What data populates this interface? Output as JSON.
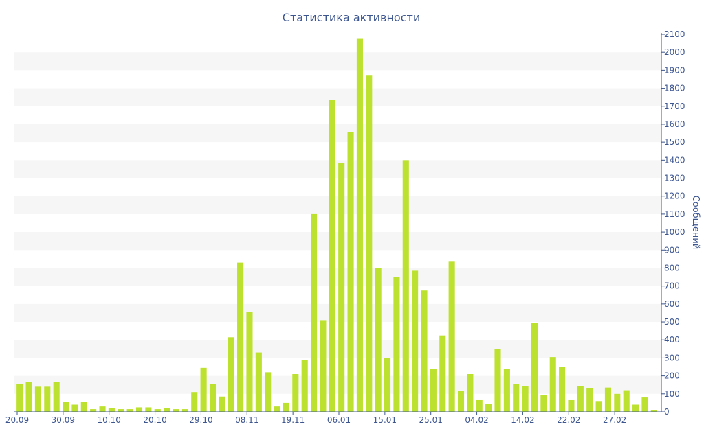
{
  "colors": {
    "bar": "#bde12f",
    "text": "#3d5690",
    "axis": "#3d5690",
    "band": "#f6f6f6"
  },
  "chart_data": {
    "type": "bar",
    "title": "Статистика активности",
    "ylabel": "Сообщений",
    "xlabel": "",
    "ylim": [
      0,
      2100
    ],
    "y_ticks": [
      0,
      100,
      200,
      300,
      400,
      500,
      600,
      700,
      800,
      900,
      1000,
      1100,
      1200,
      1300,
      1400,
      1500,
      1600,
      1700,
      1800,
      1900,
      2000,
      2100
    ],
    "x_tick_labels": [
      "20.09",
      "30.09",
      "10.10",
      "20.10",
      "29.10",
      "08.11",
      "19.11",
      "06.01",
      "15.01",
      "25.01",
      "04.02",
      "14.02",
      "22.02",
      "27.02"
    ],
    "grid": "alternating horizontal bands",
    "y_axis_position": "right",
    "values": [
      155,
      165,
      140,
      140,
      165,
      55,
      40,
      55,
      15,
      30,
      20,
      15,
      15,
      25,
      25,
      15,
      20,
      15,
      15,
      110,
      245,
      155,
      85,
      415,
      830,
      555,
      330,
      220,
      30,
      50,
      210,
      290,
      1100,
      510,
      1735,
      1385,
      1555,
      2075,
      1870,
      800,
      300,
      750,
      1400,
      785,
      675,
      240,
      425,
      835,
      115,
      210,
      65,
      45,
      350,
      240,
      155,
      145,
      495,
      95,
      305,
      250,
      65,
      145,
      130,
      60,
      135,
      100,
      120,
      40,
      80,
      10
    ]
  }
}
